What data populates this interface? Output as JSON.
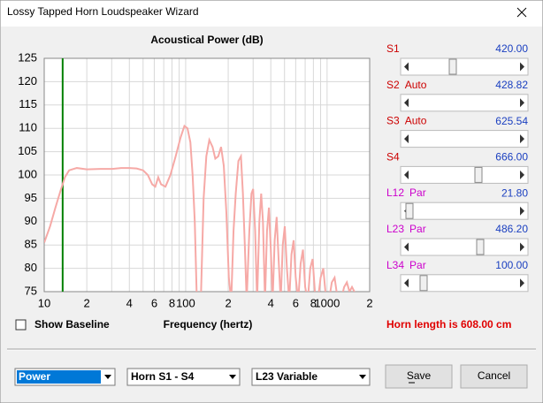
{
  "window": {
    "title": "Lossy Tapped Horn Loudspeaker Wizard"
  },
  "chart_data": {
    "type": "line",
    "title": "Acoustical Power (dB)",
    "x_label": "Frequency (hertz)",
    "log_x": true,
    "grid": true,
    "xlim": [
      10,
      2000
    ],
    "xticks": [
      10,
      {
        "value": 20,
        "label": "2"
      },
      {
        "value": 40,
        "label": "4"
      },
      {
        "value": 60,
        "label": "6"
      },
      {
        "value": 80,
        "label": "8"
      },
      100,
      {
        "value": 200,
        "label": "2"
      },
      {
        "value": 400,
        "label": "4"
      },
      {
        "value": 600,
        "label": "6"
      },
      {
        "value": 800,
        "label": "8"
      },
      1000,
      {
        "value": 2000,
        "label": "2"
      }
    ],
    "xminor": [
      30,
      50,
      70,
      90,
      300,
      500,
      700,
      900
    ],
    "ylim": [
      75,
      125
    ],
    "yticks": [
      75,
      80,
      85,
      90,
      95,
      100,
      105,
      110,
      115,
      120,
      125
    ],
    "marker_x": 13.5,
    "marker_color": "#008000",
    "series": [
      {
        "color": "#f6a9a6",
        "x": [
          10,
          11,
          12,
          13,
          14,
          15,
          17,
          20,
          25,
          30,
          35,
          40,
          45,
          50,
          54,
          58,
          61,
          64,
          67,
          72,
          78,
          85,
          92,
          98,
          103,
          108,
          112,
          116,
          120,
          128,
          134,
          140,
          147,
          155,
          162,
          170,
          178,
          186,
          194,
          202,
          210,
          218,
          226,
          236,
          246,
          254,
          262,
          270,
          282,
          292,
          300,
          310,
          320,
          332,
          342,
          352,
          364,
          376,
          388,
          400,
          412,
          426,
          440,
          454,
          470,
          486,
          502,
          520,
          540,
          560,
          580,
          600,
          625,
          650,
          675,
          700,
          730,
          760,
          790,
          820,
          860,
          900,
          940,
          980,
          1030,
          1080,
          1130,
          1180,
          1250,
          1320,
          1380,
          1440,
          1500,
          1560,
          1600
        ],
        "values": [
          85.5,
          89,
          93,
          96.5,
          99.5,
          101,
          101.5,
          101.2,
          101.3,
          101.3,
          101.5,
          101.5,
          101.4,
          101,
          100,
          98,
          97.5,
          99.5,
          98,
          97.5,
          100,
          104,
          108,
          110.5,
          110,
          107,
          100,
          90,
          73,
          73,
          95,
          104,
          107.5,
          106,
          103.5,
          104,
          106,
          102,
          92,
          78,
          73,
          88,
          96,
          103,
          104,
          96,
          85,
          73,
          88,
          96,
          97,
          88,
          73,
          90,
          96,
          90,
          73,
          88,
          93,
          84,
          73,
          86,
          91,
          82,
          73,
          85,
          89,
          80,
          73,
          83,
          86,
          78,
          73,
          81,
          84,
          76,
          73,
          80,
          82,
          75,
          73,
          78,
          80,
          74,
          73,
          77,
          78,
          74,
          73,
          76,
          77,
          75,
          76,
          75,
          74
        ]
      }
    ]
  },
  "sliders": [
    {
      "name": "S1",
      "value": "420.00",
      "color": "#cc0000"
    },
    {
      "name": "S2",
      "mode": "Auto",
      "value": "428.82",
      "color": "#cc0000"
    },
    {
      "name": "S3",
      "mode": "Auto",
      "value": "625.54",
      "color": "#cc0000"
    },
    {
      "name": "S4",
      "value": "666.00",
      "color": "#cc0000"
    },
    {
      "name": "L12",
      "mode": "Par",
      "value": "21.80",
      "color": "#cc00cc"
    },
    {
      "name": "L23",
      "mode": "Par",
      "value": "486.20",
      "color": "#cc00cc"
    },
    {
      "name": "L34",
      "mode": "Par",
      "value": "100.00",
      "color": "#cc00cc"
    }
  ],
  "checkbox": {
    "label": "Show Baseline"
  },
  "status": "Horn length is 608.00 cm",
  "dropdowns": [
    "Power",
    "Horn S1 - S4",
    "L23 Variable"
  ],
  "buttons": [
    "Save",
    "Cancel"
  ]
}
